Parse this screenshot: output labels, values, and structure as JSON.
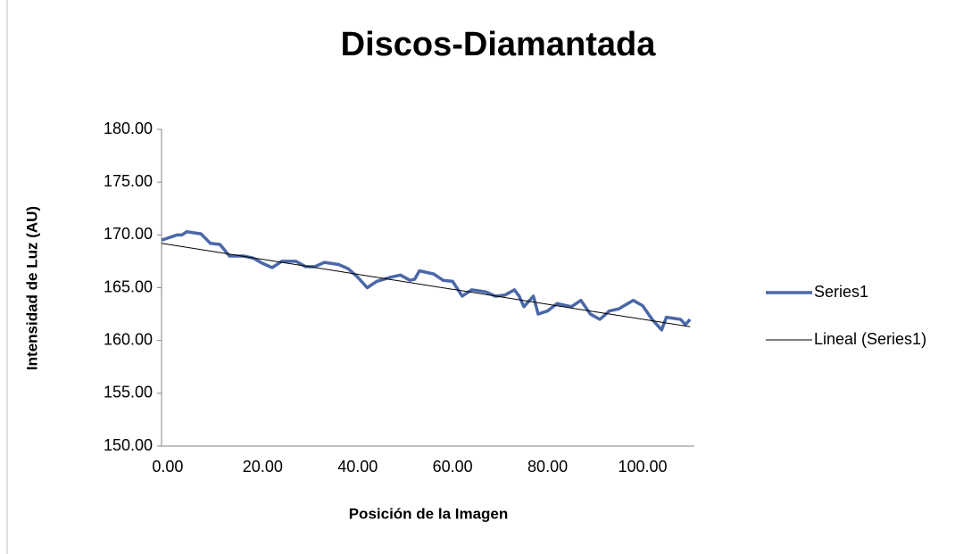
{
  "chart_data": {
    "type": "line",
    "title": "Discos-Diamantada",
    "xlabel": "Posición de la Imagen",
    "ylabel": "Intensidad de Luz (AU)",
    "xlim": [
      -1.3,
      110.9
    ],
    "ylim": [
      150,
      180
    ],
    "xticks": [
      {
        "value": 0,
        "label": "0.00"
      },
      {
        "value": 20,
        "label": "20.00"
      },
      {
        "value": 40,
        "label": "40.00"
      },
      {
        "value": 60,
        "label": "60.00"
      },
      {
        "value": 80,
        "label": "80.00"
      },
      {
        "value": 100,
        "label": "100.00"
      }
    ],
    "yticks": [
      {
        "value": 150,
        "label": "150.00"
      },
      {
        "value": 155,
        "label": "155.00"
      },
      {
        "value": 160,
        "label": "160.00"
      },
      {
        "value": 165,
        "label": "165.00"
      },
      {
        "value": 170,
        "label": "170.00"
      },
      {
        "value": 175,
        "label": "175.00"
      },
      {
        "value": 180,
        "label": "180.00"
      }
    ],
    "legend": "right",
    "series": [
      {
        "name": "Series1",
        "color": "#4a67a8",
        "width": 3.5,
        "x": [
          -1.3,
          0,
          2,
          3,
          4,
          7,
          9,
          11,
          13,
          16,
          18,
          20,
          22,
          24,
          27,
          29,
          31,
          33,
          36,
          38,
          40,
          42,
          44,
          47,
          49,
          51,
          52,
          53,
          56,
          58,
          60,
          62,
          64,
          67,
          69,
          71,
          73,
          74,
          75,
          77,
          78,
          80,
          82,
          83,
          85,
          87,
          89,
          91,
          93,
          95,
          98,
          100,
          102,
          104,
          105,
          108,
          109,
          110
        ],
        "values": [
          169.5,
          169.7,
          170.0,
          170.0,
          170.3,
          170.1,
          169.2,
          169.1,
          168.0,
          168.0,
          167.8,
          167.3,
          166.9,
          167.5,
          167.5,
          167.0,
          167.0,
          167.4,
          167.2,
          166.8,
          166.0,
          165.0,
          165.6,
          166.0,
          166.2,
          165.7,
          165.8,
          166.6,
          166.3,
          165.7,
          165.6,
          164.2,
          164.8,
          164.6,
          164.2,
          164.3,
          164.8,
          164.2,
          163.2,
          164.2,
          162.5,
          162.8,
          163.5,
          163.4,
          163.2,
          163.8,
          162.5,
          162.0,
          162.8,
          163.0,
          163.8,
          163.3,
          162.0,
          161.0,
          162.2,
          162.0,
          161.5,
          162.0
        ]
      },
      {
        "name": "Lineal (Series1)",
        "color": "#000000",
        "width": 1,
        "x": [
          -1.3,
          110
        ],
        "values": [
          169.2,
          161.3
        ]
      }
    ]
  }
}
